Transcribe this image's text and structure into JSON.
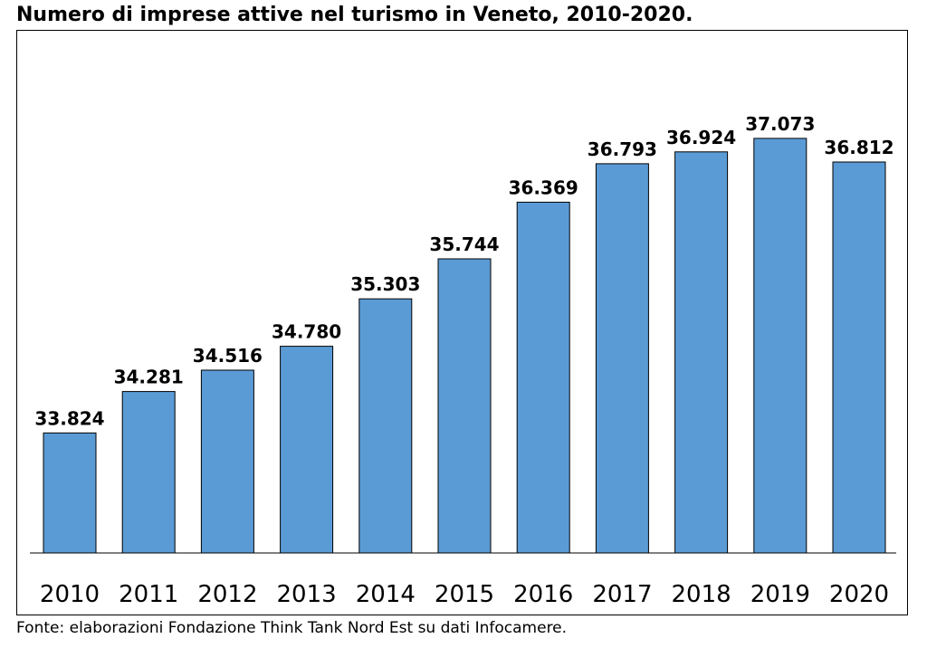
{
  "title": "Numero di imprese attive nel turismo in Veneto, 2010-2020.",
  "source": "Fonte: elaborazioni Fondazione Think Tank Nord Est su dati Infocamere.",
  "colors": {
    "bar": "#5b9bd5",
    "bar_stroke": "#000000",
    "text": "#000000"
  },
  "chart_data": {
    "type": "bar",
    "categories": [
      "2010",
      "2011",
      "2012",
      "2013",
      "2014",
      "2015",
      "2016",
      "2017",
      "2018",
      "2019",
      "2020"
    ],
    "values": [
      33824,
      34281,
      34516,
      34780,
      35303,
      35744,
      36369,
      36793,
      36924,
      37073,
      36812
    ],
    "data_labels": [
      "33.824",
      "34.281",
      "34.516",
      "34.780",
      "35.303",
      "35.744",
      "36.369",
      "36.793",
      "36.924",
      "37.073",
      "36.812"
    ],
    "title": "Numero di imprese attive nel turismo in Veneto, 2010-2020.",
    "xlabel": "",
    "ylabel": "",
    "ylim": [
      32500,
      38000
    ],
    "grid": false,
    "legend": "none"
  }
}
